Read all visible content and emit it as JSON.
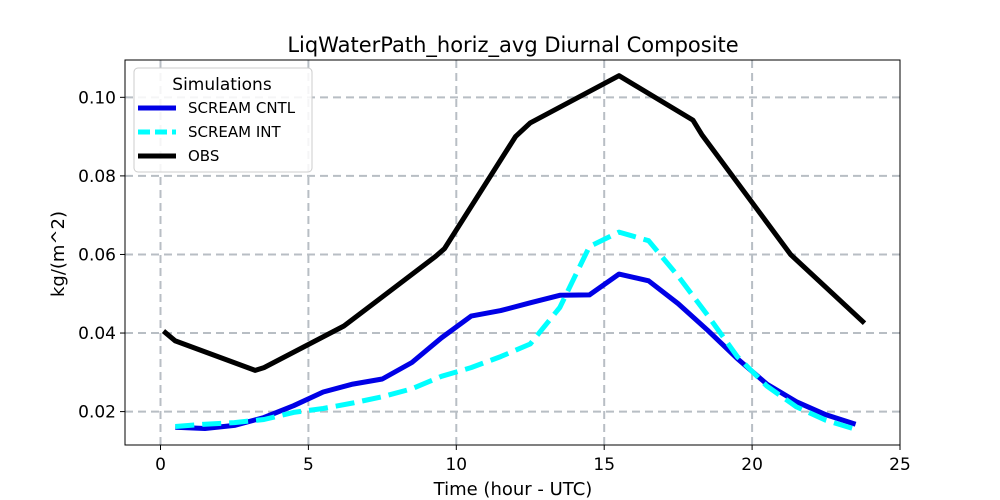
{
  "chart_data": {
    "type": "line",
    "title": "LiqWaterPath_horiz_avg Diurnal Composite",
    "xlabel": "Time (hour - UTC)",
    "ylabel": "kg/(m^2)",
    "xlim": [
      -1.2,
      25
    ],
    "ylim": [
      0.0115,
      0.1095
    ],
    "xticks": [
      0,
      5,
      10,
      15,
      20,
      25
    ],
    "xtick_labels": [
      "0",
      "5",
      "10",
      "15",
      "20",
      "25"
    ],
    "yticks": [
      0.02,
      0.04,
      0.06,
      0.08,
      0.1
    ],
    "ytick_labels": [
      "0.02",
      "0.04",
      "0.06",
      "0.08",
      "0.10"
    ],
    "grid": true,
    "legend": {
      "title": "Simulations",
      "position": "top-left"
    },
    "series": [
      {
        "name": "SCREAM CNTL",
        "color": "#0000e6",
        "style": "solid",
        "x": [
          0.5,
          1.5,
          2.5,
          3.5,
          4.5,
          5.5,
          6.5,
          7.5,
          8.5,
          9.5,
          10.5,
          11.5,
          12.5,
          13.5,
          14.5,
          15.5,
          16.5,
          17.5,
          18.5,
          19.5,
          20.5,
          21.5,
          22.5,
          23.5
        ],
        "y": [
          0.016,
          0.0157,
          0.0165,
          0.0185,
          0.0215,
          0.025,
          0.027,
          0.0283,
          0.0325,
          0.0388,
          0.0443,
          0.0457,
          0.0477,
          0.0496,
          0.0497,
          0.055,
          0.0533,
          0.0475,
          0.0407,
          0.0335,
          0.027,
          0.0225,
          0.0192,
          0.0168
        ]
      },
      {
        "name": "SCREAM INT",
        "color": "#00ffff",
        "style": "dashed",
        "x": [
          0.5,
          1.5,
          2.5,
          3.5,
          4.5,
          5.5,
          6.5,
          7.5,
          8.5,
          9.5,
          10.5,
          11.5,
          12.5,
          13.5,
          14.5,
          15.5,
          16.5,
          17.5,
          18.5,
          19.5,
          20.5,
          21.5,
          22.5,
          23.5
        ],
        "y": [
          0.0162,
          0.0168,
          0.0172,
          0.018,
          0.0198,
          0.0208,
          0.0222,
          0.0238,
          0.0258,
          0.029,
          0.0312,
          0.034,
          0.0372,
          0.0465,
          0.062,
          0.0657,
          0.0635,
          0.0545,
          0.0445,
          0.034,
          0.0265,
          0.0212,
          0.0178,
          0.0155
        ]
      },
      {
        "name": "OBS",
        "color": "#000000",
        "style": "solid",
        "x": [
          0.1,
          0.5,
          3.2,
          3.5,
          6.2,
          9.3,
          9.6,
          12.0,
          12.5,
          15.5,
          18.0,
          18.3,
          21.3,
          23.8
        ],
        "y": [
          0.0405,
          0.038,
          0.0305,
          0.0312,
          0.0418,
          0.0595,
          0.0615,
          0.09,
          0.0935,
          0.1055,
          0.0942,
          0.0905,
          0.06,
          0.0425
        ]
      }
    ]
  }
}
